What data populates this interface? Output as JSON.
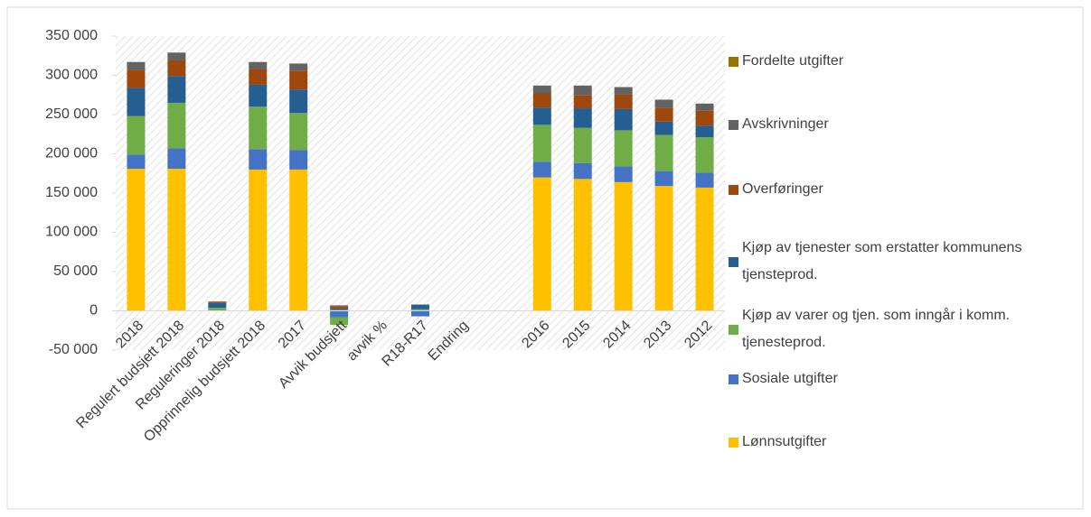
{
  "chart_data": {
    "type": "stacked_bar",
    "categories": [
      "2018",
      "Regulert budsjett 2018",
      "Reguleringer 2018",
      "Opprinnelig budsjett 2018",
      "2017",
      "Avvik budsjett",
      "avvik %",
      "R18-R17",
      "Endring",
      null,
      "2016",
      "2015",
      "2014",
      "2013",
      "2012"
    ],
    "series": [
      {
        "name": "Lønnsutgifter",
        "color": "#ffc000",
        "values": [
          181000,
          181000,
          0,
          180000,
          180000,
          1000,
          0,
          0,
          0,
          null,
          170000,
          168000,
          164000,
          159000,
          157000
        ]
      },
      {
        "name": "Sosiale utgifter",
        "color": "#4472c4",
        "values": [
          18000,
          26000,
          1000,
          26000,
          25000,
          -8000,
          0,
          -7000,
          0,
          null,
          20000,
          20000,
          20000,
          19000,
          19000
        ]
      },
      {
        "name": "Kjøp av varer og tjen. som inngår i komm. tjenesteprod.",
        "color": "#70ad47",
        "values": [
          49000,
          58000,
          3000,
          54000,
          47000,
          -10000,
          0,
          2000,
          0,
          null,
          47000,
          45000,
          46000,
          46000,
          45000
        ]
      },
      {
        "name": "Kjøp av tjenester som erstatter kommunens tjensteprod.",
        "color": "#255e91",
        "values": [
          36000,
          34000,
          6000,
          28000,
          30000,
          2000,
          0,
          6000,
          0,
          null,
          22000,
          25000,
          27000,
          17000,
          15000
        ]
      },
      {
        "name": "Overføringer",
        "color": "#9e480e",
        "values": [
          23000,
          20000,
          1000,
          20000,
          24000,
          3000,
          0,
          0,
          0,
          null,
          18000,
          17000,
          19000,
          18000,
          19000
        ]
      },
      {
        "name": "Avskrivninger",
        "color": "#636363",
        "values": [
          10000,
          10000,
          1000,
          9000,
          9000,
          1000,
          0,
          0,
          0,
          null,
          10000,
          12000,
          9000,
          10000,
          9000
        ]
      },
      {
        "name": "Fordelte utgifter",
        "color": "#997300",
        "values": [
          0,
          0,
          0,
          0,
          0,
          0,
          0,
          0,
          0,
          null,
          0,
          0,
          0,
          0,
          0
        ]
      }
    ],
    "ylim": [
      -50000,
      350000
    ],
    "yticks": [
      {
        "value": -50000,
        "label": "-50 000"
      },
      0,
      {
        "value": 50000,
        "label": "50 000"
      },
      {
        "value": 100000,
        "label": "100 000"
      },
      {
        "value": 150000,
        "label": "150 000"
      },
      {
        "value": 200000,
        "label": "200 000"
      },
      {
        "value": 250000,
        "label": "250 000"
      },
      {
        "value": 300000,
        "label": "300 000"
      },
      {
        "value": 350000,
        "label": "350 000"
      }
    ],
    "grid": false,
    "legend": "right"
  }
}
